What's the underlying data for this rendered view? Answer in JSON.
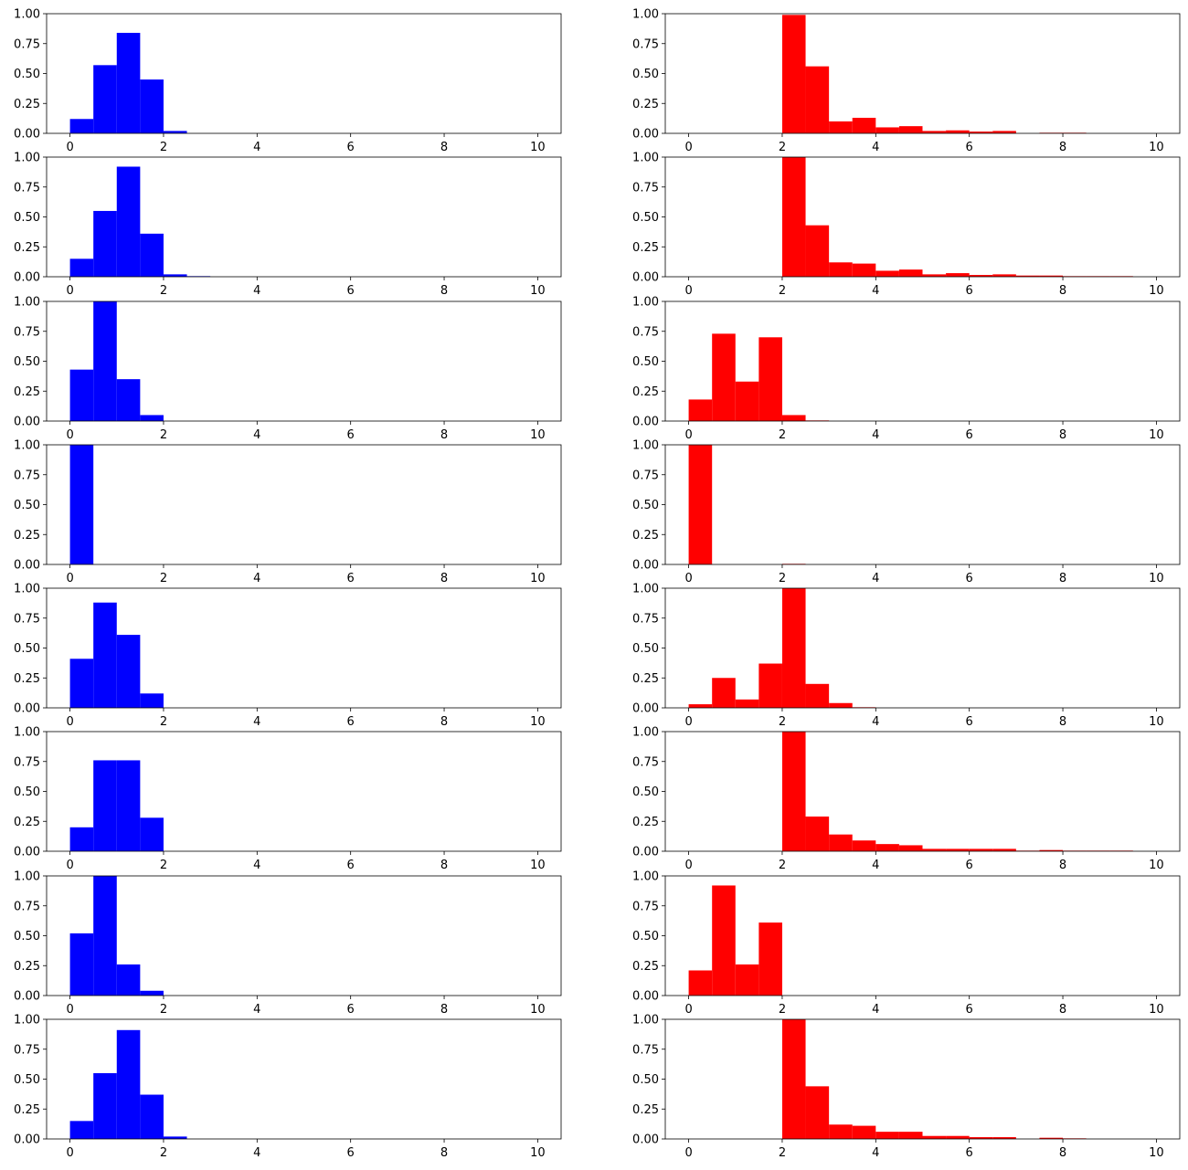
{
  "figure": {
    "layout": {
      "rows": 8,
      "cols": 2
    },
    "bin_edges": [
      0,
      0.5,
      1,
      1.5,
      2,
      2.5,
      3,
      3.5,
      4,
      4.5,
      5,
      5.5,
      6,
      6.5,
      7,
      7.5,
      8,
      8.5,
      9,
      9.5,
      10
    ],
    "xlim": [
      -0.5,
      10.5
    ],
    "ylim": [
      0,
      1
    ],
    "xticks": [
      0,
      2,
      4,
      6,
      8,
      10
    ],
    "xtick_labels": [
      "0",
      "2",
      "4",
      "6",
      "8",
      "10"
    ],
    "yticks": [
      0,
      0.25,
      0.5,
      0.75,
      1
    ],
    "ytick_labels": [
      "0.00",
      "0.25",
      "0.50",
      "0.75",
      "1.00"
    ],
    "colors": {
      "left": "#0000ff",
      "right": "#ff0000"
    }
  },
  "chart_data": [
    {
      "type": "bar",
      "row": 0,
      "col": 0,
      "color": "#0000ff",
      "values": [
        0.12,
        0.57,
        0.84,
        0.45,
        0.02,
        0,
        0,
        0,
        0,
        0,
        0,
        0,
        0,
        0,
        0,
        0,
        0,
        0,
        0,
        0
      ]
    },
    {
      "type": "bar",
      "row": 0,
      "col": 1,
      "color": "#ff0000",
      "values": [
        0,
        0,
        0,
        0,
        0.99,
        0.56,
        0.1,
        0.13,
        0.05,
        0.06,
        0.02,
        0.025,
        0.015,
        0.02,
        0,
        0.005,
        0.005,
        0,
        0,
        0
      ]
    },
    {
      "type": "bar",
      "row": 1,
      "col": 0,
      "color": "#0000ff",
      "values": [
        0.15,
        0.55,
        0.92,
        0.36,
        0.02,
        0.005,
        0,
        0,
        0,
        0,
        0,
        0,
        0,
        0,
        0,
        0,
        0,
        0,
        0,
        0
      ]
    },
    {
      "type": "bar",
      "row": 1,
      "col": 1,
      "color": "#ff0000",
      "values": [
        0,
        0,
        0,
        0,
        1.0,
        0.43,
        0.12,
        0.11,
        0.05,
        0.06,
        0.02,
        0.03,
        0.015,
        0.02,
        0.01,
        0.01,
        0.005,
        0.005,
        0.005,
        0
      ]
    },
    {
      "type": "bar",
      "row": 2,
      "col": 0,
      "color": "#0000ff",
      "values": [
        0.43,
        1.0,
        0.35,
        0.05,
        0,
        0,
        0,
        0,
        0,
        0,
        0,
        0,
        0,
        0,
        0,
        0,
        0,
        0,
        0,
        0
      ]
    },
    {
      "type": "bar",
      "row": 2,
      "col": 1,
      "color": "#ff0000",
      "values": [
        0.18,
        0.73,
        0.33,
        0.7,
        0.05,
        0.005,
        0,
        0,
        0,
        0,
        0,
        0,
        0,
        0,
        0,
        0,
        0,
        0,
        0,
        0
      ]
    },
    {
      "type": "bar",
      "row": 3,
      "col": 0,
      "color": "#0000ff",
      "values": [
        1.0,
        0,
        0,
        0,
        0,
        0,
        0,
        0,
        0,
        0,
        0,
        0,
        0,
        0,
        0,
        0,
        0,
        0,
        0,
        0
      ]
    },
    {
      "type": "bar",
      "row": 3,
      "col": 1,
      "color": "#ff0000",
      "values": [
        1.0,
        0,
        0,
        0,
        0.005,
        0,
        0,
        0,
        0,
        0,
        0,
        0,
        0,
        0,
        0,
        0,
        0,
        0,
        0,
        0
      ]
    },
    {
      "type": "bar",
      "row": 4,
      "col": 0,
      "color": "#0000ff",
      "values": [
        0.41,
        0.88,
        0.61,
        0.12,
        0,
        0,
        0,
        0,
        0,
        0,
        0,
        0,
        0,
        0,
        0,
        0,
        0,
        0,
        0,
        0
      ]
    },
    {
      "type": "bar",
      "row": 4,
      "col": 1,
      "color": "#ff0000",
      "values": [
        0.03,
        0.25,
        0.07,
        0.37,
        1.0,
        0.2,
        0.04,
        0.005,
        0,
        0,
        0,
        0,
        0,
        0,
        0,
        0,
        0,
        0,
        0,
        0
      ]
    },
    {
      "type": "bar",
      "row": 5,
      "col": 0,
      "color": "#0000ff",
      "values": [
        0.2,
        0.76,
        0.76,
        0.28,
        0,
        0,
        0,
        0,
        0,
        0,
        0,
        0,
        0,
        0,
        0,
        0,
        0,
        0,
        0,
        0
      ]
    },
    {
      "type": "bar",
      "row": 5,
      "col": 1,
      "color": "#ff0000",
      "values": [
        0,
        0,
        0,
        0,
        1.0,
        0.29,
        0.14,
        0.09,
        0.06,
        0.05,
        0.02,
        0.02,
        0.02,
        0.02,
        0.005,
        0.01,
        0.005,
        0.005,
        0.005,
        0
      ]
    },
    {
      "type": "bar",
      "row": 6,
      "col": 0,
      "color": "#0000ff",
      "values": [
        0.52,
        1.0,
        0.26,
        0.04,
        0,
        0,
        0,
        0,
        0,
        0,
        0,
        0,
        0,
        0,
        0,
        0,
        0,
        0,
        0,
        0
      ]
    },
    {
      "type": "bar",
      "row": 6,
      "col": 1,
      "color": "#ff0000",
      "values": [
        0.21,
        0.92,
        0.26,
        0.61,
        0,
        0,
        0,
        0,
        0,
        0,
        0,
        0,
        0,
        0,
        0,
        0,
        0,
        0,
        0,
        0
      ]
    },
    {
      "type": "bar",
      "row": 7,
      "col": 0,
      "color": "#0000ff",
      "values": [
        0.15,
        0.55,
        0.91,
        0.37,
        0.02,
        0,
        0,
        0,
        0,
        0,
        0,
        0,
        0,
        0,
        0,
        0,
        0,
        0,
        0,
        0
      ]
    },
    {
      "type": "bar",
      "row": 7,
      "col": 1,
      "color": "#ff0000",
      "values": [
        0,
        0,
        0,
        0,
        1.0,
        0.44,
        0.12,
        0.11,
        0.06,
        0.06,
        0.025,
        0.025,
        0.015,
        0.015,
        0,
        0.01,
        0.005,
        0,
        0,
        0
      ]
    }
  ]
}
